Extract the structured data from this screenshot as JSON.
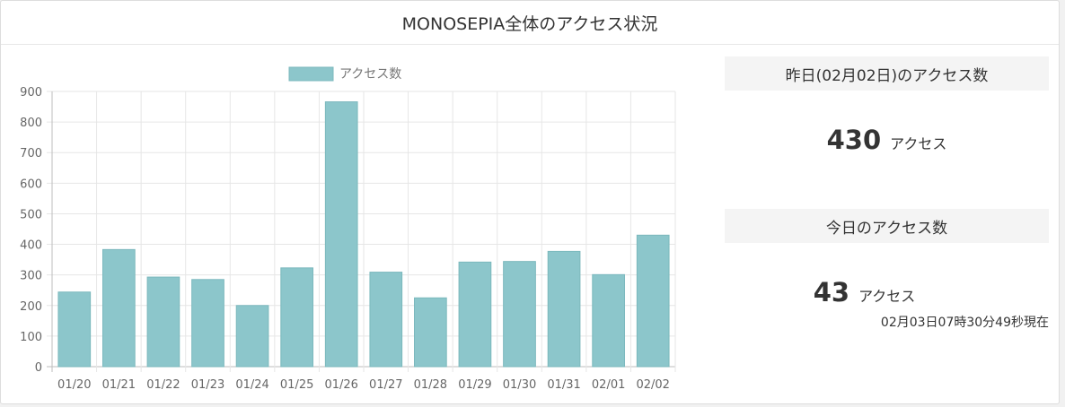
{
  "panel": {
    "title": "MONOSEPIA全体のアクセス状況"
  },
  "yesterday": {
    "heading": "昨日(02月02日)のアクセス数",
    "count": "430",
    "unit": "アクセス"
  },
  "today": {
    "heading": "今日のアクセス数",
    "count": "43",
    "unit": "アクセス",
    "as_of": "02月03日07時30分49秒現在"
  },
  "chart_data": {
    "type": "bar",
    "title": "",
    "xlabel": "",
    "ylabel": "",
    "categories": [
      "01/20",
      "01/21",
      "01/22",
      "01/23",
      "01/24",
      "01/25",
      "01/26",
      "01/27",
      "01/28",
      "01/29",
      "01/30",
      "01/31",
      "02/01",
      "02/02"
    ],
    "series": [
      {
        "name": "アクセス数",
        "values": [
          244,
          383,
          293,
          285,
          200,
          323,
          866,
          309,
          225,
          342,
          344,
          377,
          301,
          430
        ],
        "color": "#8cc6cb",
        "border_color": "#7bb8bd"
      }
    ],
    "ylim": [
      0,
      900
    ],
    "yticks": [
      0,
      100,
      200,
      300,
      400,
      500,
      600,
      700,
      800,
      900
    ],
    "grid": true,
    "legend": "top-center"
  }
}
